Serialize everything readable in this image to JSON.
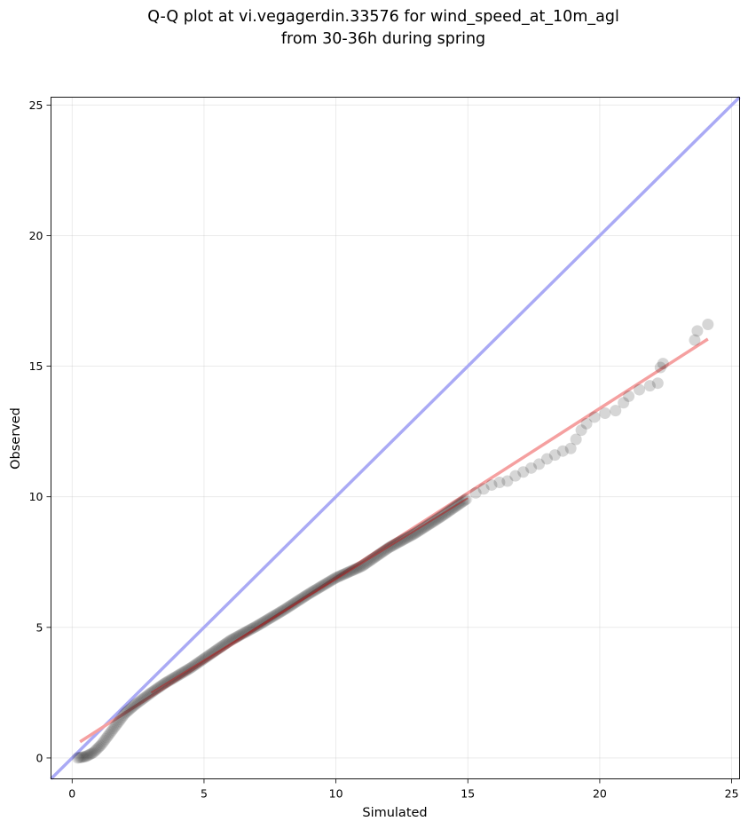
{
  "chart_data": {
    "type": "scatter",
    "title": [
      "Q-Q plot at vi.vegagerdin.33576 for wind_speed_at_10m_agl",
      "from 30-36h during spring"
    ],
    "xlabel": "Simulated",
    "ylabel": "Observed",
    "xlim": [
      -0.8,
      25.3
    ],
    "ylim": [
      -0.8,
      25.3
    ],
    "xticks": [
      0,
      5,
      10,
      15,
      20,
      25
    ],
    "yticks": [
      0,
      5,
      10,
      15,
      20,
      25
    ],
    "xtick_labels": [
      "0",
      "5",
      "10",
      "15",
      "20",
      "25"
    ],
    "ytick_labels": [
      "0",
      "5",
      "10",
      "15",
      "20",
      "25"
    ],
    "grid": true,
    "legend": "none",
    "points_color": "#000000",
    "identity_line": {
      "color": "#aaaaf5",
      "from": [
        -0.8,
        -0.8
      ],
      "to": [
        25.3,
        25.3
      ]
    },
    "fit_line": {
      "color": "#f5a0a0",
      "from": [
        0.3,
        0.62
      ],
      "to": [
        24.1,
        16.04
      ]
    },
    "dense_curve": [
      [
        0.2,
        0.0
      ],
      [
        0.5,
        0.05
      ],
      [
        0.8,
        0.2
      ],
      [
        1.1,
        0.5
      ],
      [
        1.4,
        0.9
      ],
      [
        1.7,
        1.3
      ],
      [
        2.0,
        1.7
      ],
      [
        2.4,
        2.05
      ],
      [
        3.0,
        2.5
      ],
      [
        3.5,
        2.85
      ],
      [
        4.0,
        3.15
      ],
      [
        4.5,
        3.45
      ],
      [
        5.0,
        3.8
      ],
      [
        5.5,
        4.15
      ],
      [
        6.0,
        4.5
      ],
      [
        7.0,
        5.05
      ],
      [
        8.0,
        5.65
      ],
      [
        9.0,
        6.3
      ],
      [
        10.0,
        6.9
      ],
      [
        11.0,
        7.35
      ],
      [
        12.0,
        8.05
      ],
      [
        13.0,
        8.6
      ],
      [
        14.0,
        9.25
      ],
      [
        15.0,
        9.95
      ]
    ],
    "sparse_points": [
      [
        15.3,
        10.15
      ],
      [
        15.6,
        10.3
      ],
      [
        15.9,
        10.45
      ],
      [
        16.2,
        10.55
      ],
      [
        16.5,
        10.6
      ],
      [
        16.8,
        10.8
      ],
      [
        17.1,
        10.95
      ],
      [
        17.4,
        11.1
      ],
      [
        17.7,
        11.25
      ],
      [
        18.0,
        11.45
      ],
      [
        18.3,
        11.6
      ],
      [
        18.6,
        11.75
      ],
      [
        18.9,
        11.85
      ],
      [
        19.1,
        12.2
      ],
      [
        19.3,
        12.55
      ],
      [
        19.5,
        12.8
      ],
      [
        19.8,
        13.05
      ],
      [
        20.2,
        13.2
      ],
      [
        20.6,
        13.3
      ],
      [
        20.9,
        13.6
      ],
      [
        21.1,
        13.85
      ],
      [
        21.5,
        14.1
      ],
      [
        21.9,
        14.25
      ],
      [
        22.2,
        14.35
      ],
      [
        22.3,
        14.95
      ],
      [
        22.4,
        15.1
      ],
      [
        23.6,
        16.0
      ],
      [
        23.7,
        16.35
      ],
      [
        24.1,
        16.6
      ]
    ]
  }
}
